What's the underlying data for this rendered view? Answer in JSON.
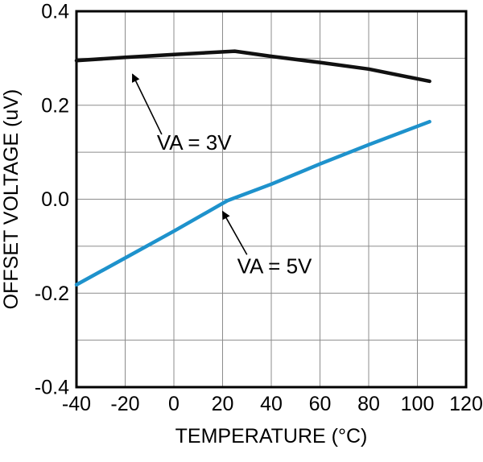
{
  "figure": {
    "background": "#ffffff"
  },
  "chart_data": {
    "type": "line",
    "title": "",
    "xlabel": "TEMPERATURE (°C)",
    "ylabel": "OFFSET VOLTAGE (uV)",
    "xlim": [
      -40,
      120
    ],
    "ylim": [
      -0.4,
      0.4
    ],
    "x_ticks": [
      -40,
      -20,
      0,
      20,
      40,
      60,
      80,
      100,
      120
    ],
    "y_ticks": [
      0.4,
      0.2,
      0.0,
      -0.2,
      -0.4
    ],
    "y_tick_labels": [
      "0.4",
      "0.2",
      "0.0",
      "-0.2",
      "-0.4"
    ],
    "grid": {
      "x_step": 20,
      "y_step": 0.1,
      "color": "#8c8c8c",
      "width": 1
    },
    "axis_color": "#000000",
    "axis_width": 3,
    "legend_position": "none",
    "series": [
      {
        "name": "VA = 3V",
        "color": "#111111",
        "width": 4.5,
        "points": [
          [
            -40,
            0.295
          ],
          [
            -20,
            0.302
          ],
          [
            0,
            0.308
          ],
          [
            25,
            0.315
          ],
          [
            40,
            0.304
          ],
          [
            60,
            0.291
          ],
          [
            80,
            0.277
          ],
          [
            105,
            0.251
          ]
        ]
      },
      {
        "name": "VA = 5V",
        "color": "#1e92cc",
        "width": 4.5,
        "points": [
          [
            -40,
            -0.182
          ],
          [
            -20,
            -0.125
          ],
          [
            0,
            -0.068
          ],
          [
            22,
            -0.003
          ],
          [
            40,
            0.032
          ],
          [
            60,
            0.075
          ],
          [
            80,
            0.116
          ],
          [
            105,
            0.165
          ]
        ]
      }
    ],
    "annotations": [
      {
        "label": "VA = 3V",
        "text": [
          -7,
          0.105
        ],
        "arrow_from": [
          -5,
          0.138
        ],
        "arrow_to": [
          -17,
          0.266
        ]
      },
      {
        "label": "VA = 5V",
        "text": [
          26,
          -0.158
        ],
        "arrow_from": [
          30,
          -0.118
        ],
        "arrow_to": [
          20,
          -0.026
        ]
      }
    ]
  }
}
